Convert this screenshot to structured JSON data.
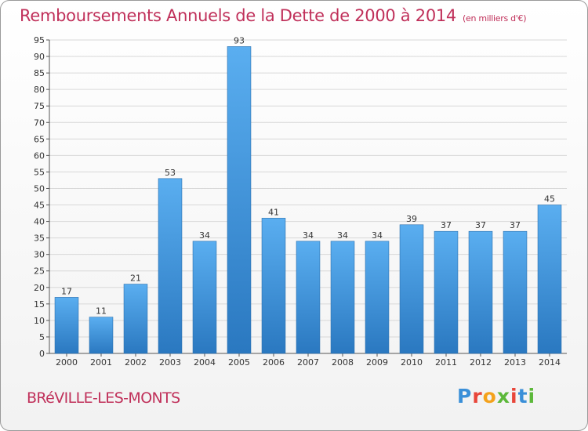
{
  "chart_data": {
    "type": "bar",
    "title": "Remboursements Annuels de la Dette de 2000 à 2014",
    "subtitle": "(en milliers d'€)",
    "categories": [
      "2000",
      "2001",
      "2002",
      "2003",
      "2004",
      "2005",
      "2006",
      "2007",
      "2008",
      "2009",
      "2010",
      "2011",
      "2012",
      "2013",
      "2014"
    ],
    "values": [
      17,
      11,
      21,
      53,
      34,
      93,
      41,
      34,
      34,
      34,
      39,
      37,
      37,
      37,
      45
    ],
    "xlabel": "",
    "ylabel": "",
    "ylim": [
      0,
      95
    ],
    "ytick_step": 5,
    "grid": true,
    "bar_color": "#4a9ee0"
  },
  "footer": {
    "town": "BRéVILLE-LES-MONTS",
    "logo_letters": [
      "P",
      "r",
      "o",
      "x",
      "i",
      "t",
      "i"
    ],
    "logo_colors": [
      "#3a8fd8",
      "#e8463a",
      "#f4a21c",
      "#5cb83a",
      "#e8463a",
      "#3a8fd8",
      "#5cb83a"
    ]
  }
}
